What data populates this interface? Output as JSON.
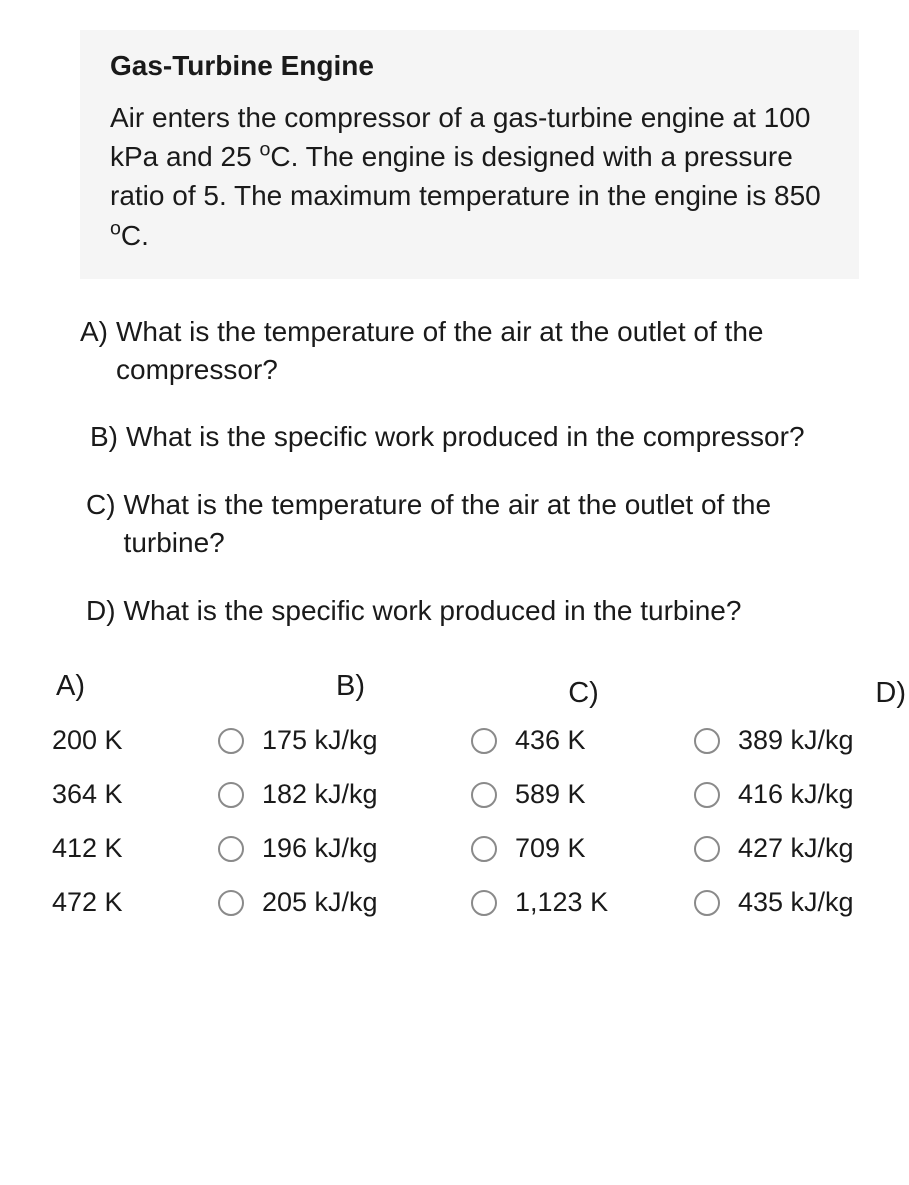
{
  "problem": {
    "title": "Gas-Turbine Engine",
    "body_html": "Air enters the compressor of a gas-turbine engine at 100 kPa and 25 <span class=\"super\">o</span>C. The engine is designed with a pressure ratio of 5. The maximum temperature in the engine is 850 <span class=\"super\">o</span>C."
  },
  "questions": [
    {
      "label": "A)",
      "text": "What is the temperature of the air at the outlet of the compressor?",
      "cls": "q-a"
    },
    {
      "label": "B)",
      "text": "What is the specific work produced in the compressor?",
      "cls": "q-b"
    },
    {
      "label": "C)",
      "text": "What is the temperature of the air at the outlet of the turbine?",
      "cls": "q-c"
    },
    {
      "label": "D)",
      "text": "What is the specific work produced in the turbine?",
      "cls": "q-d"
    }
  ],
  "answer_columns": [
    {
      "header": "A)",
      "cls": "col-a",
      "show_radio": false,
      "options": [
        "200 K",
        "364 K",
        "412 K",
        "472 K"
      ]
    },
    {
      "header": "B)",
      "cls": "col-b",
      "show_radio": true,
      "options": [
        "175 kJ/kg",
        "182 kJ/kg",
        "196 kJ/kg",
        "205 kJ/kg"
      ]
    },
    {
      "header": "C)",
      "cls": "col-c",
      "show_radio": true,
      "options": [
        "436 K",
        "589 K",
        "709 K",
        "1,123 K"
      ]
    },
    {
      "header": "D)",
      "cls": "col-d",
      "show_radio": true,
      "options": [
        "389 kJ/kg",
        "416 kJ/kg",
        "427 kJ/kg",
        "435 kJ/kg"
      ]
    }
  ],
  "colors": {
    "background": "#ffffff",
    "box_background": "#f5f5f5",
    "text": "#1a1a1a",
    "radio_border": "#8a8a8a"
  },
  "typography": {
    "title_fontsize": 28,
    "body_fontsize": 28,
    "option_fontsize": 27,
    "font_family": "-apple-system, Segoe UI, Helvetica Neue, Arial"
  }
}
